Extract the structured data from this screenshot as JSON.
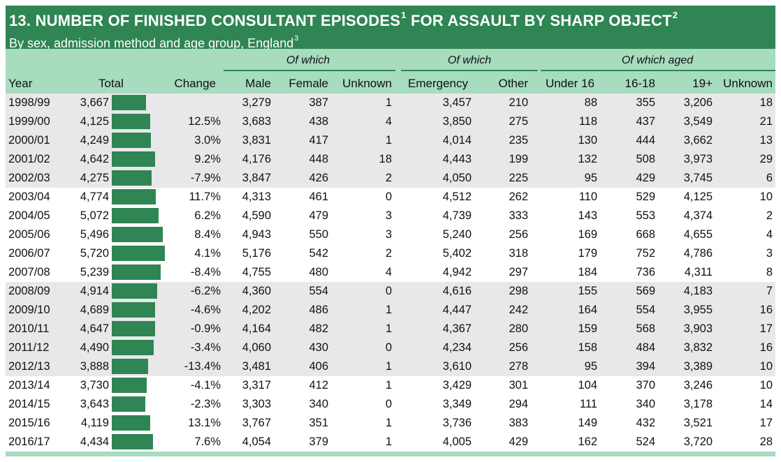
{
  "title": {
    "number": "13.",
    "main": "NUMBER OF FINISHED CONSULTANT EPISODES",
    "main_sup": "1",
    "main_tail": " FOR ASSAULT BY SHARP OBJECT",
    "tail_sup": "2",
    "subtitle": "By sex, admission method and age group, England",
    "subtitle_sup": "3"
  },
  "groups": {
    "sex": "Of which",
    "admission": "Of which",
    "age": "Of which aged"
  },
  "columns": {
    "year": "Year",
    "total": "Total",
    "change": "Change",
    "male": "Male",
    "female": "Female",
    "unknown_sex": "Unknown",
    "emergency": "Emergency",
    "other": "Other",
    "under16": "Under 16",
    "age16_18": "16-18",
    "age19plus": "19+",
    "unknown_age": "Unknown"
  },
  "accent_color": "#2f8553",
  "header_color": "#a7dcbe",
  "band_color": "#e8e8ea",
  "rows": [
    {
      "year": "1998/99",
      "total": "3,667",
      "total_value": 3667,
      "change": "",
      "male": "3,279",
      "female": "387",
      "unknown_sex": "1",
      "emergency": "3,457",
      "other": "210",
      "under16": "88",
      "age16_18": "355",
      "age19plus": "3,206",
      "unknown_age": "18"
    },
    {
      "year": "1999/00",
      "total": "4,125",
      "total_value": 4125,
      "change": "12.5%",
      "male": "3,683",
      "female": "438",
      "unknown_sex": "4",
      "emergency": "3,850",
      "other": "275",
      "under16": "118",
      "age16_18": "437",
      "age19plus": "3,549",
      "unknown_age": "21"
    },
    {
      "year": "2000/01",
      "total": "4,249",
      "total_value": 4249,
      "change": "3.0%",
      "male": "3,831",
      "female": "417",
      "unknown_sex": "1",
      "emergency": "4,014",
      "other": "235",
      "under16": "130",
      "age16_18": "444",
      "age19plus": "3,662",
      "unknown_age": "13"
    },
    {
      "year": "2001/02",
      "total": "4,642",
      "total_value": 4642,
      "change": "9.2%",
      "male": "4,176",
      "female": "448",
      "unknown_sex": "18",
      "emergency": "4,443",
      "other": "199",
      "under16": "132",
      "age16_18": "508",
      "age19plus": "3,973",
      "unknown_age": "29"
    },
    {
      "year": "2002/03",
      "total": "4,275",
      "total_value": 4275,
      "change": "-7.9%",
      "male": "3,847",
      "female": "426",
      "unknown_sex": "2",
      "emergency": "4,050",
      "other": "225",
      "under16": "95",
      "age16_18": "429",
      "age19plus": "3,745",
      "unknown_age": "6"
    },
    {
      "year": "2003/04",
      "total": "4,774",
      "total_value": 4774,
      "change": "11.7%",
      "male": "4,313",
      "female": "461",
      "unknown_sex": "0",
      "emergency": "4,512",
      "other": "262",
      "under16": "110",
      "age16_18": "529",
      "age19plus": "4,125",
      "unknown_age": "10"
    },
    {
      "year": "2004/05",
      "total": "5,072",
      "total_value": 5072,
      "change": "6.2%",
      "male": "4,590",
      "female": "479",
      "unknown_sex": "3",
      "emergency": "4,739",
      "other": "333",
      "under16": "143",
      "age16_18": "553",
      "age19plus": "4,374",
      "unknown_age": "2"
    },
    {
      "year": "2005/06",
      "total": "5,496",
      "total_value": 5496,
      "change": "8.4%",
      "male": "4,943",
      "female": "550",
      "unknown_sex": "3",
      "emergency": "5,240",
      "other": "256",
      "under16": "169",
      "age16_18": "668",
      "age19plus": "4,655",
      "unknown_age": "4"
    },
    {
      "year": "2006/07",
      "total": "5,720",
      "total_value": 5720,
      "change": "4.1%",
      "male": "5,176",
      "female": "542",
      "unknown_sex": "2",
      "emergency": "5,402",
      "other": "318",
      "under16": "179",
      "age16_18": "752",
      "age19plus": "4,786",
      "unknown_age": "3"
    },
    {
      "year": "2007/08",
      "total": "5,239",
      "total_value": 5239,
      "change": "-8.4%",
      "male": "4,755",
      "female": "480",
      "unknown_sex": "4",
      "emergency": "4,942",
      "other": "297",
      "under16": "184",
      "age16_18": "736",
      "age19plus": "4,311",
      "unknown_age": "8"
    },
    {
      "year": "2008/09",
      "total": "4,914",
      "total_value": 4914,
      "change": "-6.2%",
      "male": "4,360",
      "female": "554",
      "unknown_sex": "0",
      "emergency": "4,616",
      "other": "298",
      "under16": "155",
      "age16_18": "569",
      "age19plus": "4,183",
      "unknown_age": "7"
    },
    {
      "year": "2009/10",
      "total": "4,689",
      "total_value": 4689,
      "change": "-4.6%",
      "male": "4,202",
      "female": "486",
      "unknown_sex": "1",
      "emergency": "4,447",
      "other": "242",
      "under16": "164",
      "age16_18": "554",
      "age19plus": "3,955",
      "unknown_age": "16"
    },
    {
      "year": "2010/11",
      "total": "4,647",
      "total_value": 4647,
      "change": "-0.9%",
      "male": "4,164",
      "female": "482",
      "unknown_sex": "1",
      "emergency": "4,367",
      "other": "280",
      "under16": "159",
      "age16_18": "568",
      "age19plus": "3,903",
      "unknown_age": "17"
    },
    {
      "year": "2011/12",
      "total": "4,490",
      "total_value": 4490,
      "change": "-3.4%",
      "male": "4,060",
      "female": "430",
      "unknown_sex": "0",
      "emergency": "4,234",
      "other": "256",
      "under16": "158",
      "age16_18": "484",
      "age19plus": "3,832",
      "unknown_age": "16"
    },
    {
      "year": "2012/13",
      "total": "3,888",
      "total_value": 3888,
      "change": "-13.4%",
      "male": "3,481",
      "female": "406",
      "unknown_sex": "1",
      "emergency": "3,610",
      "other": "278",
      "under16": "95",
      "age16_18": "394",
      "age19plus": "3,389",
      "unknown_age": "10"
    },
    {
      "year": "2013/14",
      "total": "3,730",
      "total_value": 3730,
      "change": "-4.1%",
      "male": "3,317",
      "female": "412",
      "unknown_sex": "1",
      "emergency": "3,429",
      "other": "301",
      "under16": "104",
      "age16_18": "370",
      "age19plus": "3,246",
      "unknown_age": "10"
    },
    {
      "year": "2014/15",
      "total": "3,643",
      "total_value": 3643,
      "change": "-2.3%",
      "male": "3,303",
      "female": "340",
      "unknown_sex": "0",
      "emergency": "3,349",
      "other": "294",
      "under16": "111",
      "age16_18": "340",
      "age19plus": "3,178",
      "unknown_age": "14"
    },
    {
      "year": "2015/16",
      "total": "4,119",
      "total_value": 4119,
      "change": "13.1%",
      "male": "3,767",
      "female": "351",
      "unknown_sex": "1",
      "emergency": "3,736",
      "other": "383",
      "under16": "149",
      "age16_18": "432",
      "age19plus": "3,521",
      "unknown_age": "17"
    },
    {
      "year": "2016/17",
      "total": "4,434",
      "total_value": 4434,
      "change": "7.6%",
      "male": "4,054",
      "female": "379",
      "unknown_sex": "1",
      "emergency": "4,005",
      "other": "429",
      "under16": "162",
      "age16_18": "524",
      "age19plus": "3,720",
      "unknown_age": "28"
    }
  ]
}
